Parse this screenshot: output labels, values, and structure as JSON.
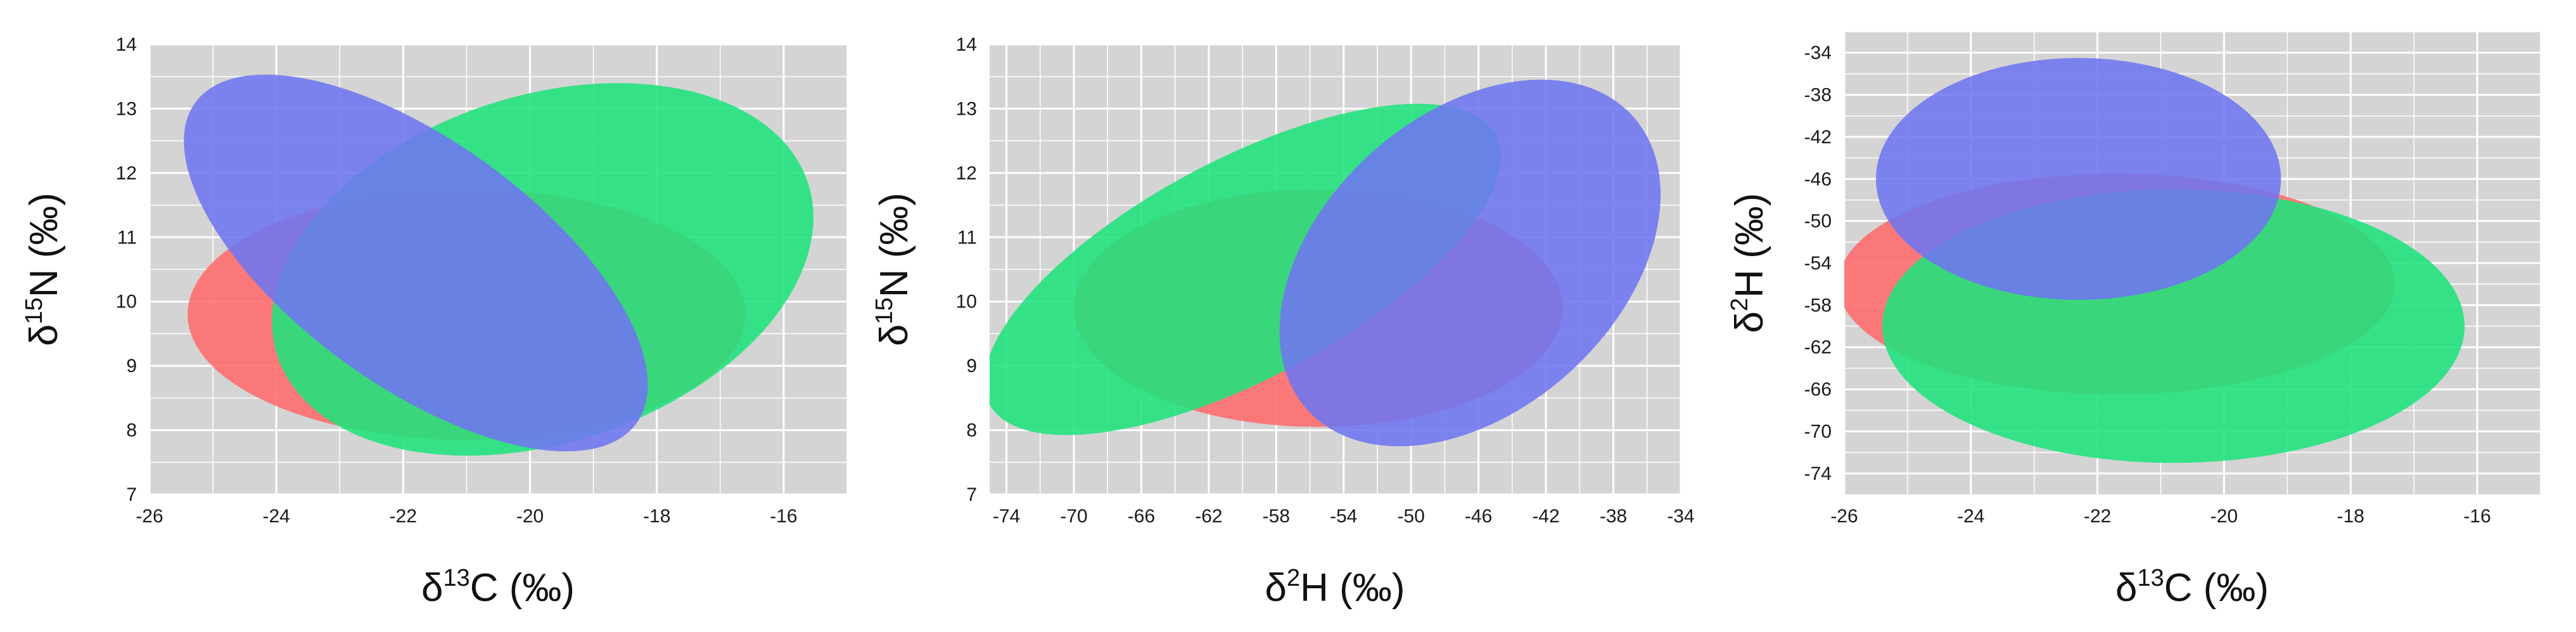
{
  "chart_data": [
    {
      "type": "ellipse",
      "xlabel": {
        "delta": "δ",
        "mass": "13",
        "element": "C (‰)"
      },
      "ylabel": {
        "delta": "δ",
        "mass": "15",
        "element": "N (‰)"
      },
      "xlim": [
        -26,
        -15
      ],
      "ylim": [
        7,
        14
      ],
      "xticks": [
        -26,
        -24,
        -22,
        -20,
        -18,
        -16
      ],
      "yticks": [
        7,
        8,
        9,
        10,
        11,
        12,
        13,
        14
      ],
      "grid": true,
      "series": [
        {
          "color": "#ff6b6b",
          "cx": -21.0,
          "cy": 9.8,
          "rx": 4.4,
          "ry": 1.95,
          "angle": 0
        },
        {
          "color": "#1fe37c",
          "cx": -19.8,
          "cy": 10.5,
          "rx": 4.4,
          "ry": 2.7,
          "angle": 18
        },
        {
          "color": "#6e75f0",
          "cx": -21.8,
          "cy": 10.6,
          "rx": 4.3,
          "ry": 1.9,
          "angle": -36
        }
      ]
    },
    {
      "type": "ellipse",
      "xlabel": {
        "delta": "δ",
        "mass": "2",
        "element": "H (‰)"
      },
      "ylabel": {
        "delta": "δ",
        "mass": "15",
        "element": "N (‰)"
      },
      "xlim": [
        -75,
        -34
      ],
      "ylim": [
        7,
        14
      ],
      "xticks": [
        -74,
        -70,
        -66,
        -62,
        -58,
        -54,
        -50,
        -46,
        -42,
        -38,
        -34
      ],
      "yticks": [
        7,
        8,
        9,
        10,
        11,
        12,
        13,
        14
      ],
      "grid": true,
      "series": [
        {
          "color": "#ff6b6b",
          "cx": -55.5,
          "cy": 9.9,
          "rx": 14.5,
          "ry": 1.85,
          "angle": 0
        },
        {
          "color": "#1fe37c",
          "cx": -60.0,
          "cy": 10.5,
          "rx": 17.0,
          "ry": 1.7,
          "angle": 28
        },
        {
          "color": "#6e75f0",
          "cx": -46.5,
          "cy": 10.6,
          "rx": 13.0,
          "ry": 2.3,
          "angle": 42
        }
      ]
    },
    {
      "type": "ellipse",
      "xlabel": {
        "delta": "δ",
        "mass": "13",
        "element": "C (‰)"
      },
      "ylabel": {
        "delta": "δ",
        "mass": "2",
        "element": "H (‰)"
      },
      "xlim": [
        -26,
        -15
      ],
      "ylim": [
        -76,
        -32
      ],
      "xticks": [
        -26,
        -24,
        -22,
        -20,
        -18,
        -16
      ],
      "yticks": [
        -34,
        -38,
        -42,
        -46,
        -50,
        -54,
        -58,
        -62,
        -66,
        -70,
        -74
      ],
      "grid": true,
      "series": [
        {
          "color": "#ff6b6b",
          "cx": -21.7,
          "cy": -56.0,
          "rx": 4.4,
          "ry": 10.5,
          "angle": 0
        },
        {
          "color": "#1fe37c",
          "cx": -20.8,
          "cy": -60.0,
          "rx": 4.6,
          "ry": 13.0,
          "angle": 0
        },
        {
          "color": "#6e75f0",
          "cx": -22.3,
          "cy": -46.0,
          "rx": 3.2,
          "ry": 11.5,
          "angle": 0
        }
      ]
    }
  ]
}
